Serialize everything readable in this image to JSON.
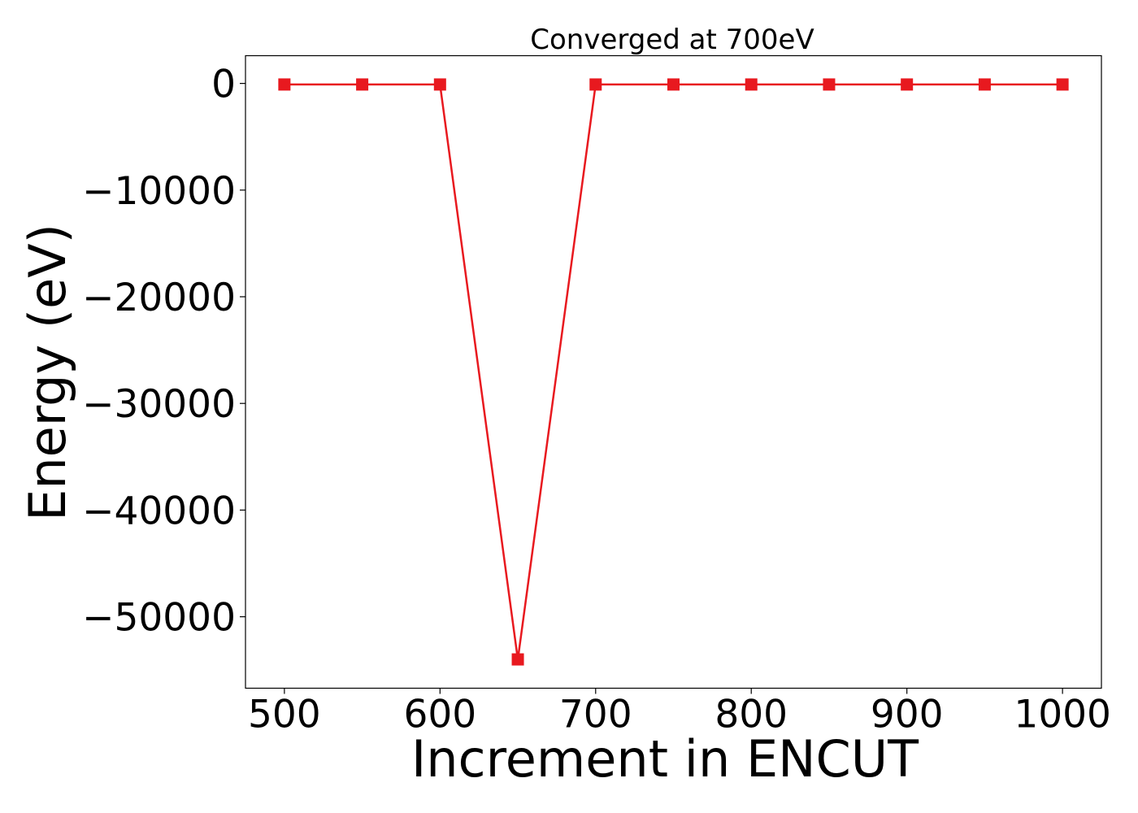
{
  "chart_data": {
    "type": "line",
    "title": "Converged at 700eV",
    "xlabel": "Increment in ENCUT",
    "ylabel": "Energy (eV)",
    "x": [
      500,
      550,
      600,
      650,
      700,
      750,
      800,
      850,
      900,
      950,
      1000
    ],
    "series": [
      {
        "values": [
          -100,
          -100,
          -100,
          -54000,
          -100,
          -100,
          -100,
          -100,
          -100,
          -100,
          -100
        ],
        "color": "#e8191f",
        "marker": "square"
      }
    ],
    "x_ticks": [
      500,
      600,
      700,
      800,
      900,
      1000
    ],
    "x_tick_labels": [
      "500",
      "600",
      "700",
      "800",
      "900",
      "1000"
    ],
    "y_ticks": [
      0,
      -10000,
      -20000,
      -30000,
      -40000,
      -50000
    ],
    "y_tick_labels": [
      "0",
      "−10000",
      "−20000",
      "−30000",
      "−40000",
      "−50000"
    ],
    "xlim": [
      475,
      1025
    ],
    "ylim": [
      -56700,
      2600
    ],
    "grid": false,
    "legend": false
  }
}
